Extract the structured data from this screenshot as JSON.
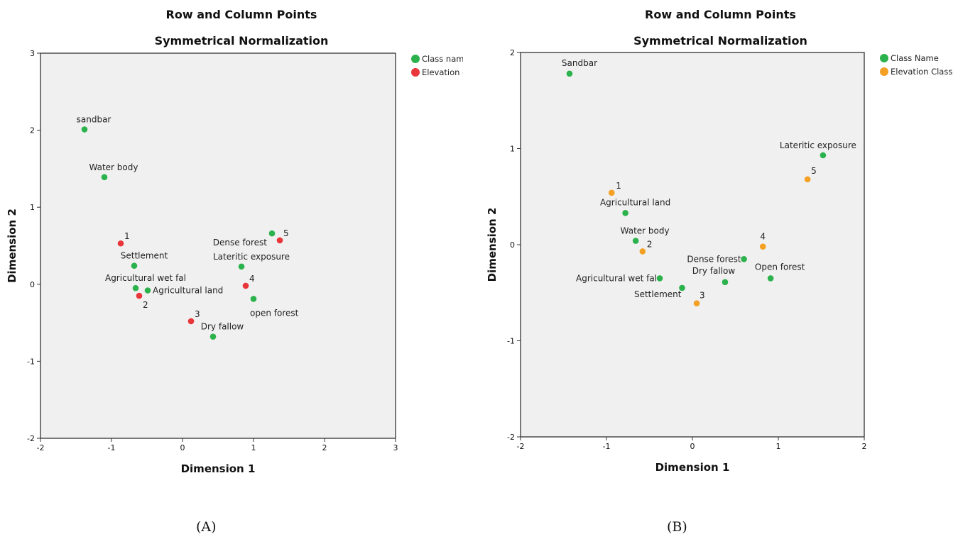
{
  "charts": [
    {
      "title": "Row and Column Points",
      "subtitle": "Symmetrical Normalization",
      "caption": "(A)",
      "chart_data": {
        "type": "scatter",
        "xlabel": "Dimension 1",
        "ylabel": "Dimension 2",
        "xlim": [
          -2,
          3
        ],
        "ylim": [
          -2,
          3
        ],
        "xticks": [
          -2,
          -1,
          0,
          1,
          2,
          3
        ],
        "yticks": [
          -2,
          -1,
          0,
          1,
          2,
          3
        ],
        "grid": false,
        "legend_position": "top-right",
        "series": [
          {
            "name": "Class nam",
            "color": "#2bb24c",
            "points": [
              {
                "label": "sandbar",
                "x": -1.38,
                "y": 2.01
              },
              {
                "label": "Water body",
                "x": -1.1,
                "y": 1.39
              },
              {
                "label": "Settlement",
                "x": -0.68,
                "y": 0.24
              },
              {
                "label": "Agricultural wet fal",
                "x": -0.66,
                "y": -0.05
              },
              {
                "label": "Agricultural land",
                "x": -0.49,
                "y": -0.08
              },
              {
                "label": "Dense forest",
                "x": 1.26,
                "y": 0.66
              },
              {
                "label": "Lateritic exposure",
                "x": 0.83,
                "y": 0.23
              },
              {
                "label": "open forest",
                "x": 1.0,
                "y": -0.19
              },
              {
                "label": "Dry fallow",
                "x": 0.43,
                "y": -0.68
              }
            ]
          },
          {
            "name": "Elevation c",
            "color": "#e8363a",
            "points": [
              {
                "label": "1",
                "x": -0.87,
                "y": 0.53
              },
              {
                "label": "2",
                "x": -0.61,
                "y": -0.15
              },
              {
                "label": "3",
                "x": 0.12,
                "y": -0.48
              },
              {
                "label": "4",
                "x": 0.89,
                "y": -0.02
              },
              {
                "label": "5",
                "x": 1.37,
                "y": 0.57
              }
            ]
          }
        ]
      }
    },
    {
      "title": "Row and Column Points",
      "subtitle": "Symmetrical Normalization",
      "caption": "(B)",
      "chart_data": {
        "type": "scatter",
        "xlabel": "Dimension 1",
        "ylabel": "Dimension 2",
        "xlim": [
          -2,
          2
        ],
        "ylim": [
          -2,
          2
        ],
        "xticks": [
          -2,
          -1,
          0,
          1,
          2
        ],
        "yticks": [
          -2,
          -1,
          0,
          1,
          2
        ],
        "grid": false,
        "legend_position": "top-right",
        "series": [
          {
            "name": "Class Name",
            "color": "#2bb24c",
            "points": [
              {
                "label": "Sandbar",
                "x": -1.43,
                "y": 1.78
              },
              {
                "label": "Lateritic exposure",
                "x": 1.52,
                "y": 0.93
              },
              {
                "label": "Agricultural land",
                "x": -0.78,
                "y": 0.33
              },
              {
                "label": "Water body",
                "x": -0.66,
                "y": 0.04
              },
              {
                "label": "Dense forest",
                "x": 0.6,
                "y": -0.15
              },
              {
                "label": "Agricultural wet fal",
                "x": -0.38,
                "y": -0.35
              },
              {
                "label": "Dry fallow",
                "x": 0.38,
                "y": -0.39
              },
              {
                "label": "Open forest",
                "x": 0.91,
                "y": -0.35
              },
              {
                "label": "Settlement",
                "x": -0.12,
                "y": -0.45
              }
            ]
          },
          {
            "name": "Elevation Class",
            "color": "#f4a023",
            "points": [
              {
                "label": "1",
                "x": -0.94,
                "y": 0.54
              },
              {
                "label": "2",
                "x": -0.58,
                "y": -0.07
              },
              {
                "label": "3",
                "x": 0.05,
                "y": -0.61
              },
              {
                "label": "4",
                "x": 0.82,
                "y": -0.02
              },
              {
                "label": "5",
                "x": 1.34,
                "y": 0.68
              }
            ]
          }
        ]
      }
    }
  ]
}
